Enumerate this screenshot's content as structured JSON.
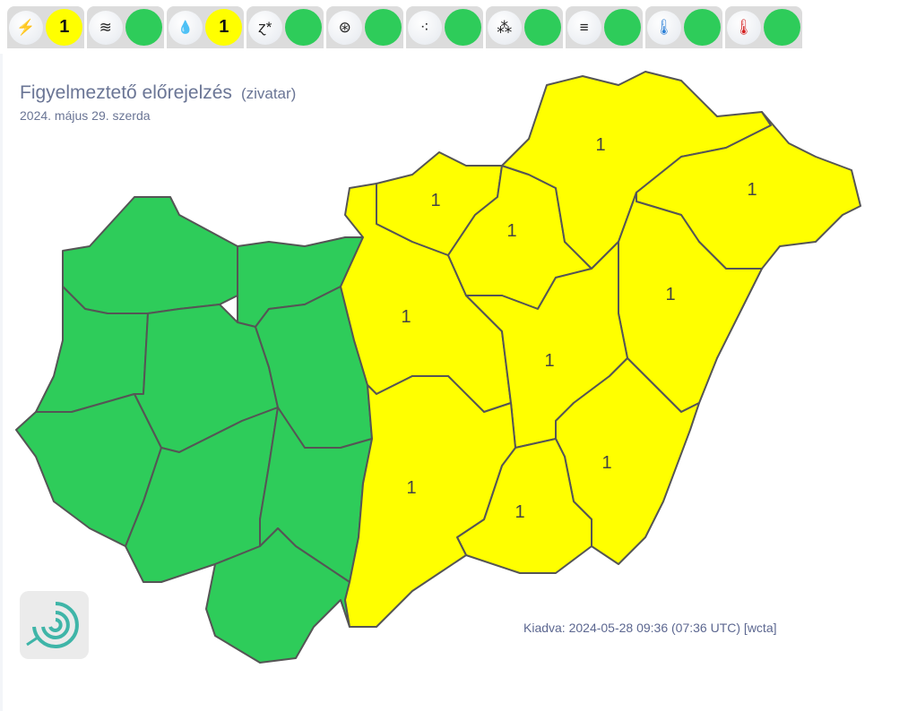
{
  "toolbar": {
    "items": [
      {
        "icon": "lightning-icon",
        "glyph": "⚡",
        "level": "1",
        "color": "#ffff00"
      },
      {
        "icon": "wind-sock-icon",
        "glyph": "≋",
        "level": "",
        "color": "#2ecc5a"
      },
      {
        "icon": "rain-icon",
        "glyph": "💧",
        "level": "1",
        "color": "#ffff00"
      },
      {
        "icon": "snow-drift-icon",
        "glyph": "ɀ*",
        "level": "",
        "color": "#2ecc5a"
      },
      {
        "icon": "freezing-rain-icon",
        "glyph": "⊛",
        "level": "",
        "color": "#2ecc5a"
      },
      {
        "icon": "rainfall-icon",
        "glyph": "⁖",
        "level": "",
        "color": "#2ecc5a"
      },
      {
        "icon": "snowfall-icon",
        "glyph": "⁂",
        "level": "",
        "color": "#2ecc5a"
      },
      {
        "icon": "fog-icon",
        "glyph": "≡",
        "level": "",
        "color": "#2ecc5a"
      },
      {
        "icon": "cold-thermometer-icon",
        "glyph": "🌡",
        "level": "",
        "color": "#2ecc5a"
      },
      {
        "icon": "heat-thermometer-icon",
        "glyph": "🌡",
        "level": "",
        "color": "#2ecc5a"
      }
    ]
  },
  "header": {
    "title": "Figyelmeztető előrejelzés",
    "subtitle": "(zivatar)",
    "date": "2024. május 29. szerda"
  },
  "colors": {
    "green": "#2ecc5a",
    "yellow": "#ffff00",
    "border": "#555555",
    "text": "#6a7595"
  },
  "map": {
    "regions": [
      {
        "name": "gyor-moson-sopron",
        "level": "",
        "color": "#2ecc5a"
      },
      {
        "name": "komarom-esztergom",
        "level": "",
        "color": "#2ecc5a"
      },
      {
        "name": "vas",
        "level": "",
        "color": "#2ecc5a"
      },
      {
        "name": "zala",
        "level": "",
        "color": "#2ecc5a"
      },
      {
        "name": "veszprem",
        "level": "",
        "color": "#2ecc5a"
      },
      {
        "name": "fejer",
        "level": "",
        "color": "#2ecc5a"
      },
      {
        "name": "somogy",
        "level": "",
        "color": "#2ecc5a"
      },
      {
        "name": "tolna",
        "level": "",
        "color": "#2ecc5a"
      },
      {
        "name": "baranya",
        "level": "",
        "color": "#2ecc5a"
      },
      {
        "name": "pest",
        "level": "1",
        "color": "#ffff00"
      },
      {
        "name": "nograd",
        "level": "1",
        "color": "#ffff00"
      },
      {
        "name": "heves",
        "level": "1",
        "color": "#ffff00"
      },
      {
        "name": "borsod-abauj-zemplen",
        "level": "1",
        "color": "#ffff00"
      },
      {
        "name": "szabolcs-szatmar-bereg",
        "level": "1",
        "color": "#ffff00"
      },
      {
        "name": "hajdu-bihar",
        "level": "1",
        "color": "#ffff00"
      },
      {
        "name": "jasz-nagykun-szolnok",
        "level": "1",
        "color": "#ffff00"
      },
      {
        "name": "bekes",
        "level": "1",
        "color": "#ffff00"
      },
      {
        "name": "csongrad",
        "level": "1",
        "color": "#ffff00"
      },
      {
        "name": "bacs-kiskun",
        "level": "1",
        "color": "#ffff00"
      }
    ]
  },
  "footer": {
    "issued": "Kiadva: 2024-05-28 09:36 (07:36 UTC) [wcta]"
  }
}
